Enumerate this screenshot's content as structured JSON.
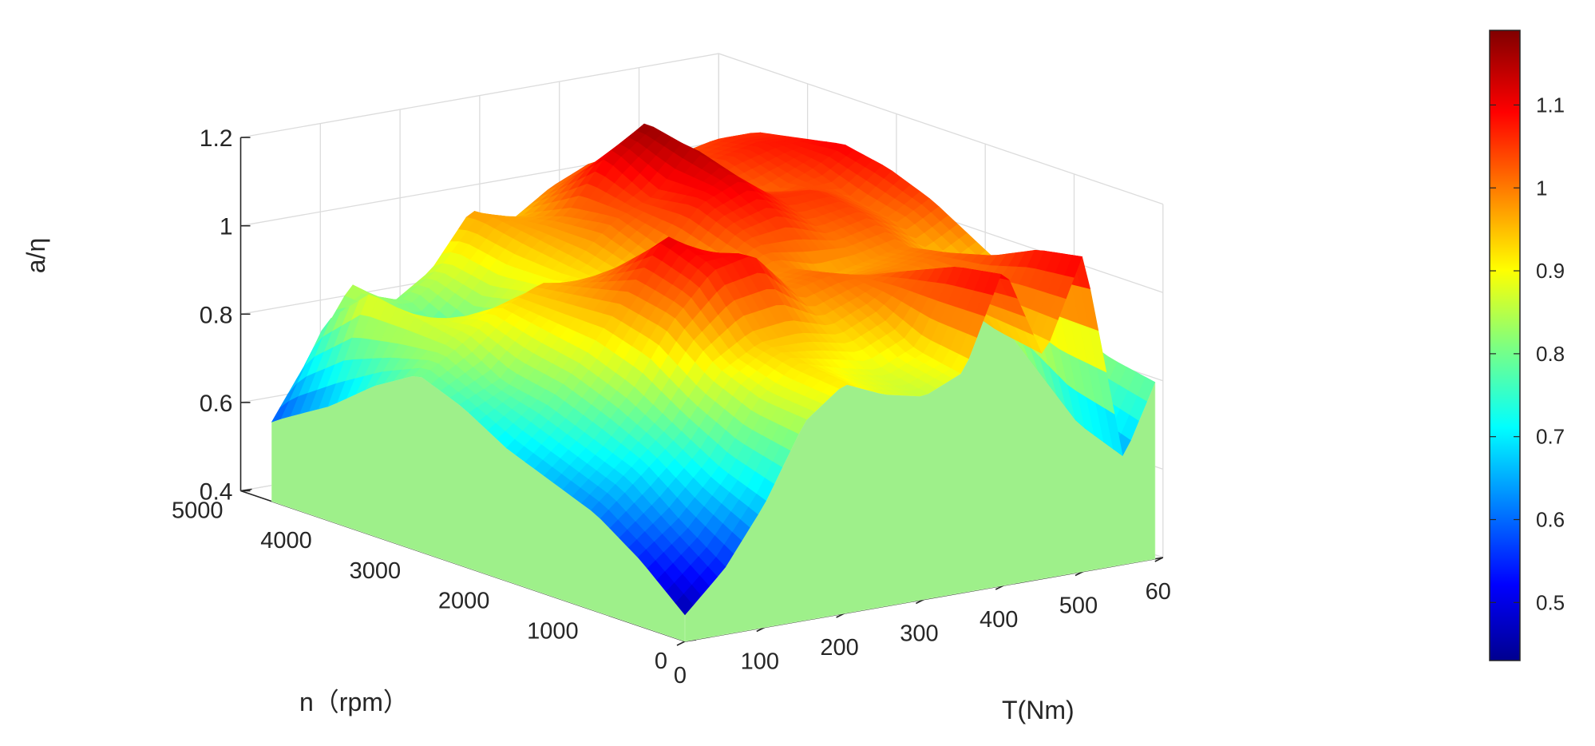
{
  "chart_data": {
    "type": "surface3d",
    "title": "",
    "xlabel": "T(Nm)",
    "ylabel": "n（rpm）",
    "zlabel": "a/η",
    "xlim": [
      0,
      600
    ],
    "ylim": [
      0,
      5000
    ],
    "zlim": [
      0.4,
      1.2
    ],
    "x_ticks": [
      "0",
      "100",
      "200",
      "300",
      "400",
      "500",
      "60"
    ],
    "y_ticks": [
      "0",
      "1000",
      "2000",
      "3000",
      "4000",
      "5000"
    ],
    "z_ticks": [
      "0.4",
      "0.6",
      "0.8",
      "1",
      "1.2"
    ],
    "colorbar": {
      "colormap": "jet",
      "range": [
        0.43,
        1.19
      ],
      "ticks": [
        "0.5",
        "0.6",
        "0.7",
        "0.8",
        "0.9",
        "1",
        "1.1"
      ]
    },
    "grid": true,
    "T": [
      0,
      50,
      100,
      150,
      200,
      250,
      300,
      350,
      400,
      450,
      500,
      550,
      590
    ],
    "n": [
      0,
      500,
      1000,
      1500,
      2000,
      2500,
      3000,
      3500,
      4000,
      4500,
      4650
    ],
    "z": [
      [
        0.46,
        0.55,
        0.68,
        0.85,
        0.92,
        0.88,
        0.86,
        0.9,
        1.12,
        0.9,
        1.12,
        0.64,
        0.8
      ],
      [
        0.55,
        0.62,
        0.72,
        0.86,
        0.93,
        0.9,
        0.88,
        0.92,
        1.1,
        0.92,
        1.1,
        0.68,
        0.82
      ],
      [
        0.62,
        0.7,
        0.78,
        0.9,
        0.95,
        0.96,
        0.94,
        0.98,
        1.05,
        0.96,
        1.05,
        0.78,
        0.86
      ],
      [
        0.66,
        0.74,
        0.84,
        0.98,
        1.08,
        1.1,
        1.0,
        1.02,
        1.0,
        1.0,
        1.02,
        0.88,
        0.92
      ],
      [
        0.7,
        0.78,
        0.88,
        1.0,
        1.12,
        1.06,
        0.98,
        1.0,
        0.96,
        0.98,
        1.0,
        0.94,
        0.98
      ],
      [
        0.76,
        0.8,
        0.9,
        0.98,
        1.02,
        0.96,
        0.96,
        1.04,
        1.06,
        1.02,
        1.04,
        1.0,
        1.04
      ],
      [
        0.8,
        0.86,
        0.92,
        0.96,
        0.94,
        0.92,
        0.98,
        1.08,
        1.12,
        1.06,
        1.06,
        1.02,
        1.08
      ],
      [
        0.74,
        0.88,
        0.86,
        0.8,
        0.88,
        0.94,
        1.02,
        1.06,
        1.16,
        1.04,
        1.02,
        1.06,
        1.1
      ],
      [
        0.66,
        0.9,
        0.8,
        0.76,
        0.86,
        0.96,
        1.0,
        1.12,
        1.18,
        1.0,
        1.06,
        1.08,
        1.08
      ],
      [
        0.6,
        0.8,
        0.84,
        0.82,
        0.88,
        0.98,
        0.96,
        1.02,
        1.06,
        1.02,
        1.04,
        1.06,
        1.06
      ],
      [
        0.58,
        0.72,
        0.86,
        0.8,
        0.86,
        0.98,
        0.94,
        1.0,
        1.04,
        1.0,
        1.02,
        1.04,
        1.04
      ]
    ]
  }
}
